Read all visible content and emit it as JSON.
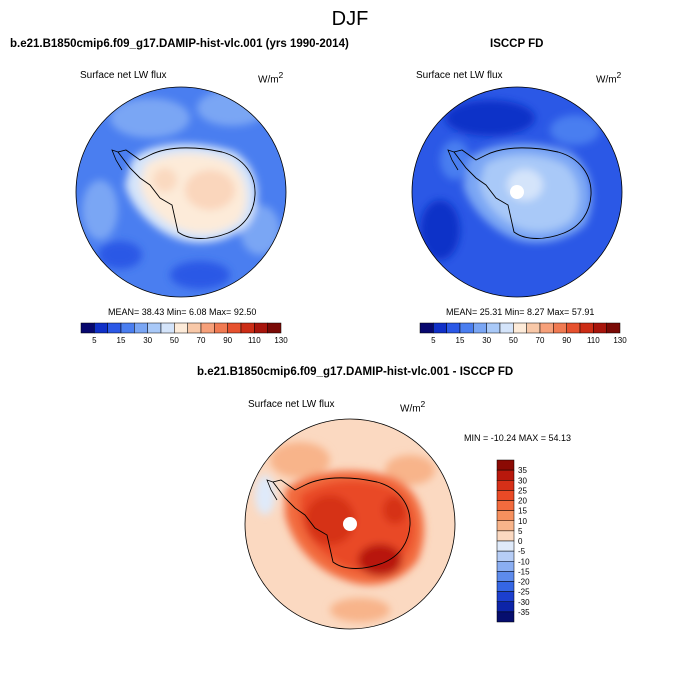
{
  "season": "DJF",
  "panels": {
    "model": {
      "title": "b.e21.B1850cmip6.f09_g17.DAMIP-hist-vlc.001 (yrs 1990-2014)",
      "variable": "Surface net LW flux",
      "units": "W/m",
      "units_exp": "2",
      "stats": "MEAN=  38.43  Min=   6.08  Max=  92.50"
    },
    "obs": {
      "title": "ISCCP FD",
      "variable": "Surface net LW flux",
      "units": "W/m",
      "units_exp": "2",
      "stats": "MEAN=  25.31  Min=   8.27  Max=  57.91"
    },
    "diff": {
      "title": "b.e21.B1850cmip6.f09_g17.DAMIP-hist-vlc.001 - ISCCP FD",
      "variable": "Surface net LW flux",
      "units": "W/m",
      "units_exp": "2",
      "stats": "MIN = -10.24 MAX =  54.13"
    }
  },
  "colorbar_abs": {
    "labels": [
      "5",
      "15",
      "30",
      "50",
      "70",
      "90",
      "110",
      "130"
    ],
    "colors": [
      "#08086e",
      "#1030c8",
      "#2b58e6",
      "#4a7ef0",
      "#7aa6f4",
      "#a9c9f8",
      "#d4e4fa",
      "#fdebd9",
      "#f8c8a8",
      "#f6a07a",
      "#f07a52",
      "#e6512e",
      "#cc2d16",
      "#a8150c",
      "#7a0a06"
    ]
  },
  "colorbar_diff": {
    "labels": [
      "35",
      "30",
      "25",
      "20",
      "15",
      "10",
      "5",
      "0",
      "-5",
      "-10",
      "-15",
      "-20",
      "-25",
      "-30",
      "-35"
    ],
    "colors": [
      "#8b0a04",
      "#b8180c",
      "#d63018",
      "#e94a26",
      "#f26b3e",
      "#f6905e",
      "#f8b48a",
      "#fbd9c1",
      "#dfeafa",
      "#b6cdf6",
      "#8aaef2",
      "#5d8bec",
      "#3566e4",
      "#1c3fce",
      "#0c24a8",
      "#060e6e"
    ]
  }
}
